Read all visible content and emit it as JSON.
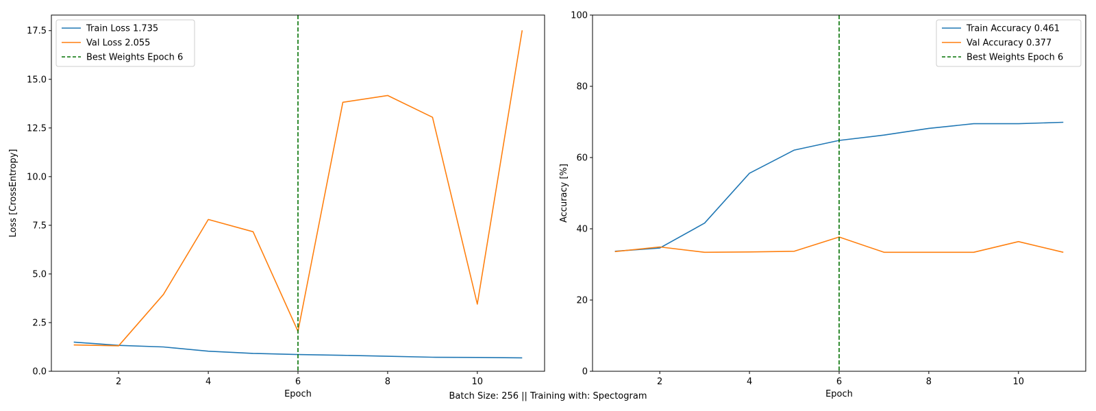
{
  "caption": "Batch Size: 256 || Training with: Spectogram",
  "colors": {
    "train": "#1f77b4",
    "val": "#ff7f0e",
    "best": "#007000"
  },
  "chart_data": [
    {
      "type": "line",
      "xlabel": "Epoch",
      "ylabel": "Loss [CrossEntropy]",
      "xlim": [
        0.5,
        11.5
      ],
      "ylim": [
        0,
        18.3
      ],
      "xticks": [
        2,
        4,
        6,
        8,
        10
      ],
      "yticks": [
        0,
        2.5,
        5,
        7.5,
        10,
        12.5,
        15,
        17.5
      ],
      "ytick_labels": [
        "0.0",
        "2.5",
        "5.0",
        "7.5",
        "10.0",
        "12.5",
        "15.0",
        "17.5"
      ],
      "legend_position": "top-left",
      "x": [
        1,
        2,
        3,
        4,
        5,
        6,
        7,
        8,
        9,
        10,
        11
      ],
      "series": [
        {
          "name": "Train Loss 1.735",
          "color": "#1f77b4",
          "values": [
            1.5,
            1.33,
            1.25,
            1.03,
            0.92,
            0.86,
            0.82,
            0.77,
            0.72,
            0.71,
            0.69
          ]
        },
        {
          "name": "Val Loss 2.055",
          "color": "#ff7f0e",
          "values": [
            1.35,
            1.31,
            3.95,
            7.8,
            7.17,
            2.05,
            13.82,
            14.17,
            13.05,
            3.45,
            17.52
          ]
        }
      ],
      "vline": {
        "name": "Best Weights Epoch 6",
        "x": 6,
        "color": "#007000"
      }
    },
    {
      "type": "line",
      "xlabel": "Epoch",
      "ylabel": "Accuracy [%]",
      "xlim": [
        0.5,
        11.5
      ],
      "ylim": [
        0,
        100
      ],
      "xticks": [
        2,
        4,
        6,
        8,
        10
      ],
      "yticks": [
        0,
        20,
        40,
        60,
        80,
        100
      ],
      "ytick_labels": [
        "0",
        "20",
        "40",
        "60",
        "80",
        "100"
      ],
      "legend_position": "top-right",
      "x": [
        1,
        2,
        3,
        4,
        5,
        6,
        7,
        8,
        9,
        10,
        11
      ],
      "series": [
        {
          "name": "Train Accuracy 0.461",
          "color": "#1f77b4",
          "values": [
            33.7,
            34.6,
            41.6,
            55.6,
            62.1,
            64.8,
            66.3,
            68.2,
            69.5,
            69.5,
            69.9
          ]
        },
        {
          "name": "Val Accuracy 0.377",
          "color": "#ff7f0e",
          "values": [
            33.6,
            34.9,
            33.4,
            33.5,
            33.7,
            37.7,
            33.4,
            33.4,
            33.4,
            36.4,
            33.4
          ]
        }
      ],
      "vline": {
        "name": "Best Weights Epoch 6",
        "x": 6,
        "color": "#007000"
      }
    }
  ]
}
